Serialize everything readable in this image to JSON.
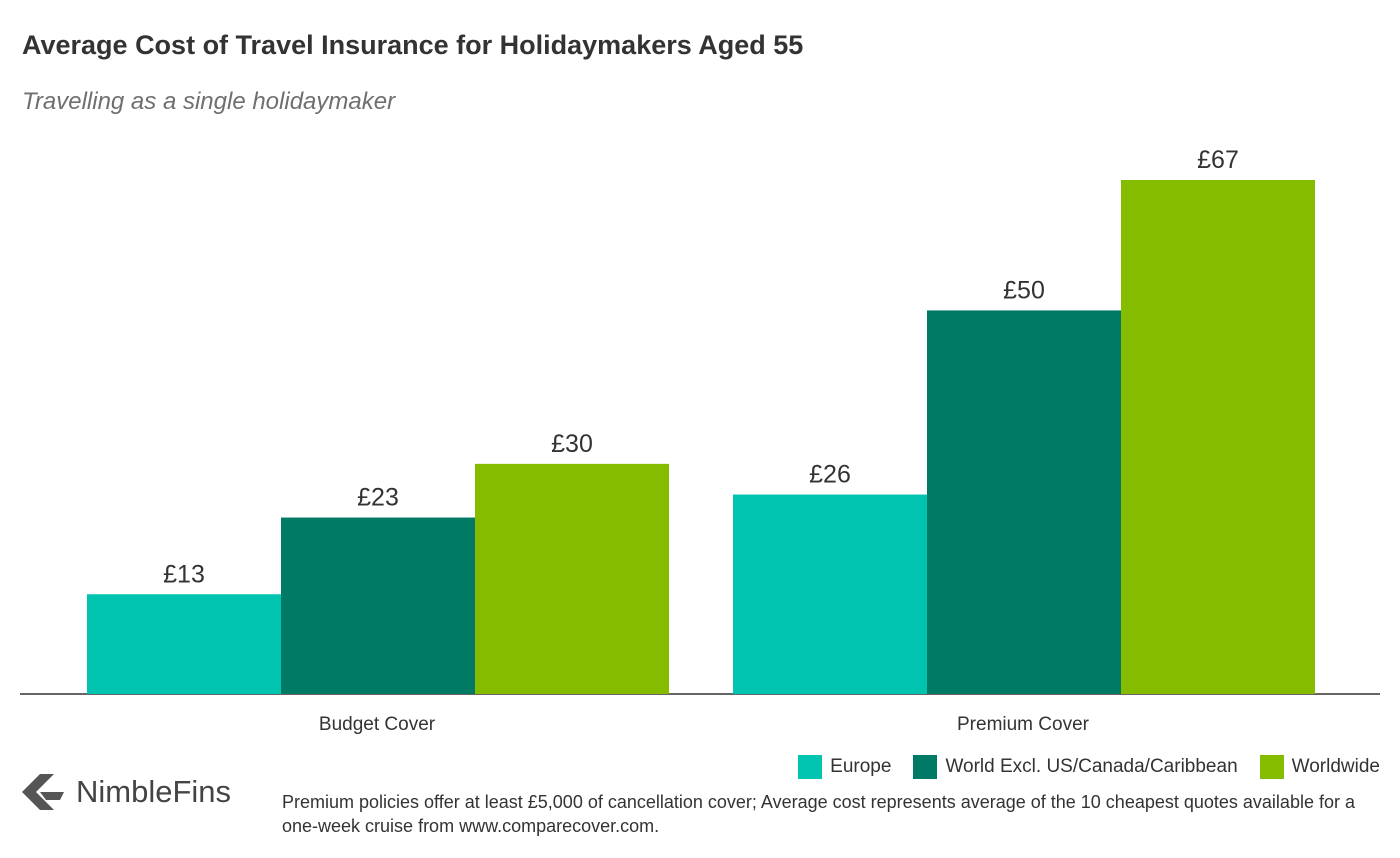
{
  "chart_data": {
    "type": "bar",
    "title": "Average Cost of Travel Insurance for Holidaymakers Aged 55",
    "subtitle": "Travelling as a single holidaymaker",
    "categories": [
      "Budget Cover",
      "Premium Cover"
    ],
    "series": [
      {
        "name": "Europe",
        "color": "#00c4b0",
        "values": [
          13,
          26
        ],
        "labels": [
          "£13",
          "£26"
        ]
      },
      {
        "name": "World Excl. US/Canada/Caribbean",
        "color": "#007a64",
        "values": [
          23,
          50
        ],
        "labels": [
          "£23",
          "£50"
        ]
      },
      {
        "name": "Worldwide",
        "color": "#86bc00",
        "values": [
          30,
          67
        ],
        "labels": [
          "£30",
          "£67"
        ]
      }
    ],
    "ylim": [
      0,
      70
    ],
    "grid": false,
    "legend_position": "bottom-right"
  },
  "logo": {
    "name": "NimbleFins",
    "icon": "nimblefins-chevron-icon"
  },
  "footnote": "Premium policies offer at least £5,000 of cancellation cover; Average cost represents average of the 10 cheapest quotes available for a one-week cruise from www.comparecover.com."
}
